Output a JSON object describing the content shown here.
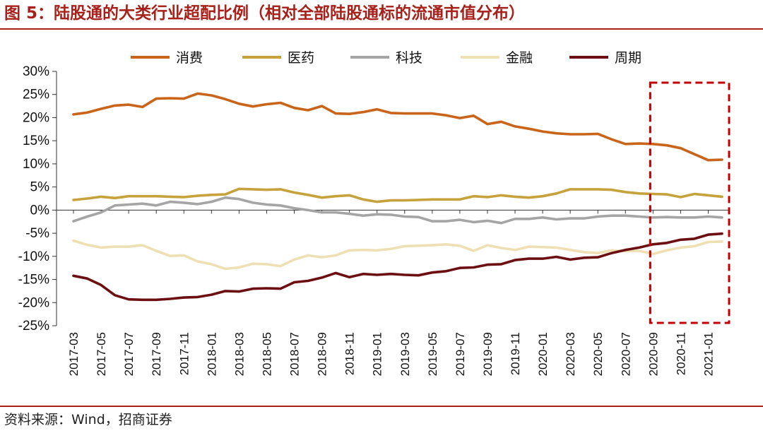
{
  "figure": {
    "title": "图 5：陆股通的大类行业超配比例（相对全部陆股通标的流通市值分布）",
    "source": "资料来源：Wind，招商证券"
  },
  "chart_data": {
    "type": "line",
    "x": [
      "2017-03",
      "2017-04",
      "2017-05",
      "2017-06",
      "2017-07",
      "2017-08",
      "2017-09",
      "2017-10",
      "2017-11",
      "2017-12",
      "2018-01",
      "2018-02",
      "2018-03",
      "2018-04",
      "2018-05",
      "2018-06",
      "2018-07",
      "2018-08",
      "2018-09",
      "2018-10",
      "2018-11",
      "2018-12",
      "2019-01",
      "2019-02",
      "2019-03",
      "2019-04",
      "2019-05",
      "2019-06",
      "2019-07",
      "2019-08",
      "2019-09",
      "2019-10",
      "2019-11",
      "2019-12",
      "2020-01",
      "2020-02",
      "2020-03",
      "2020-04",
      "2020-05",
      "2020-06",
      "2020-07",
      "2020-08",
      "2020-09",
      "2020-10",
      "2020-11",
      "2020-12",
      "2021-01",
      "2021-02"
    ],
    "x_tick_labels": [
      "2017-03",
      "2017-05",
      "2017-07",
      "2017-09",
      "2017-11",
      "2018-01",
      "2018-03",
      "2018-05",
      "2018-07",
      "2018-09",
      "2018-11",
      "2019-01",
      "2019-03",
      "2019-05",
      "2019-07",
      "2019-09",
      "2019-11",
      "2020-01",
      "2020-03",
      "2020-05",
      "2020-07",
      "2020-09",
      "2020-11",
      "2021-01"
    ],
    "ylim": [
      -25,
      30
    ],
    "yticks": [
      30,
      25,
      20,
      15,
      10,
      5,
      0,
      -5,
      -10,
      -15,
      -20,
      -25
    ],
    "ytick_labels": [
      "30%",
      "25%",
      "20%",
      "15%",
      "10%",
      "5%",
      "0%",
      "-5%",
      "-10%",
      "-15%",
      "-20%",
      "-25%"
    ],
    "legend_position": "top",
    "series": [
      {
        "name": "消费",
        "color": "#c8651b",
        "values": [
          20.7,
          21.1,
          21.9,
          22.6,
          22.8,
          22.3,
          24.1,
          24.2,
          24.1,
          25.2,
          24.8,
          24.0,
          23.0,
          22.4,
          22.9,
          23.2,
          22.1,
          21.6,
          22.5,
          20.9,
          20.8,
          21.2,
          21.8,
          21.0,
          20.9,
          20.9,
          20.9,
          20.5,
          19.9,
          20.4,
          18.6,
          19.1,
          18.1,
          17.6,
          17.0,
          16.6,
          16.4,
          16.4,
          16.5,
          15.3,
          14.3,
          14.4,
          14.3,
          14.0,
          13.4,
          12.1,
          10.8,
          10.9
        ]
      },
      {
        "name": "医药",
        "color": "#c6a23d",
        "values": [
          2.2,
          2.5,
          2.9,
          2.6,
          3.0,
          3.0,
          3.0,
          2.9,
          2.8,
          3.1,
          3.3,
          3.4,
          4.6,
          4.5,
          4.4,
          4.5,
          3.8,
          3.3,
          2.7,
          3.0,
          3.2,
          2.3,
          1.8,
          2.1,
          2.1,
          2.2,
          2.3,
          2.3,
          2.3,
          3.0,
          2.8,
          3.2,
          2.9,
          2.7,
          3.0,
          3.6,
          4.5,
          4.5,
          4.5,
          4.4,
          3.9,
          3.6,
          3.5,
          3.4,
          2.8,
          3.5,
          3.2,
          2.9
        ]
      },
      {
        "name": "科技",
        "color": "#a5a5a5",
        "values": [
          -2.4,
          -1.4,
          -0.5,
          1.0,
          1.2,
          1.4,
          1.0,
          1.8,
          1.6,
          1.3,
          1.8,
          2.7,
          2.4,
          1.6,
          1.2,
          1.0,
          0.4,
          0.0,
          -0.5,
          -0.5,
          -0.8,
          -1.2,
          -0.9,
          -1.0,
          -1.4,
          -1.5,
          -2.4,
          -2.4,
          -2.1,
          -2.6,
          -2.3,
          -2.8,
          -1.9,
          -1.9,
          -1.6,
          -2.0,
          -1.8,
          -1.8,
          -1.4,
          -1.2,
          -1.2,
          -1.4,
          -1.6,
          -1.5,
          -1.6,
          -1.6,
          -1.4,
          -1.6
        ]
      },
      {
        "name": "金融",
        "color": "#efe0b4",
        "values": [
          -6.6,
          -7.5,
          -8.1,
          -7.9,
          -7.9,
          -7.6,
          -8.8,
          -9.9,
          -9.8,
          -11.1,
          -11.7,
          -12.7,
          -12.4,
          -11.6,
          -11.7,
          -12.1,
          -10.7,
          -9.8,
          -10.2,
          -9.8,
          -8.7,
          -8.6,
          -8.7,
          -8.4,
          -7.8,
          -7.7,
          -7.6,
          -7.4,
          -7.7,
          -8.8,
          -7.6,
          -8.2,
          -8.6,
          -7.9,
          -8.0,
          -8.1,
          -8.6,
          -9.1,
          -9.3,
          -8.7,
          -8.9,
          -8.8,
          -9.5,
          -8.7,
          -8.1,
          -7.8,
          -6.9,
          -6.8
        ]
      },
      {
        "name": "周期",
        "color": "#6b0f12",
        "values": [
          -14.2,
          -14.8,
          -16.2,
          -18.4,
          -19.3,
          -19.4,
          -19.4,
          -19.2,
          -18.9,
          -18.8,
          -18.3,
          -17.5,
          -17.6,
          -17.0,
          -16.9,
          -17.0,
          -15.6,
          -15.3,
          -14.6,
          -13.6,
          -14.5,
          -13.8,
          -14.0,
          -13.8,
          -14.0,
          -14.1,
          -13.5,
          -13.2,
          -12.5,
          -12.4,
          -11.8,
          -11.7,
          -10.8,
          -10.5,
          -10.5,
          -10.1,
          -10.7,
          -10.3,
          -10.2,
          -9.3,
          -8.6,
          -8.1,
          -7.4,
          -7.1,
          -6.4,
          -6.2,
          -5.3,
          -5.1
        ]
      }
    ],
    "highlight": {
      "from": "2020-09",
      "to": "2021-02",
      "color": "#c00000",
      "style": "dashed"
    }
  }
}
